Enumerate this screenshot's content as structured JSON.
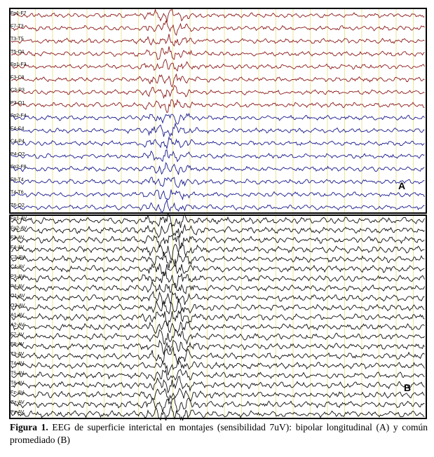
{
  "figure": {
    "panel_a": {
      "letter": "A",
      "channels": [
        "Fp1-F7",
        "F7-T3",
        "T3-T5",
        "T5-O1",
        "Fp1-F3",
        "F3-C3",
        "C3-P3",
        "P3-O1",
        "Fp2-F4",
        "F4-C4",
        "C4-P4",
        "P4-O2",
        "Fp2-F8",
        "F8-T4",
        "T4-T6",
        "T6-O2"
      ],
      "colors": [
        "#8b1a1a",
        "#8b1a1a",
        "#8b1a1a",
        "#8b1a1a",
        "#8b1a1a",
        "#8b1a1a",
        "#8b1a1a",
        "#8b1a1a",
        "#1a1a8b",
        "#1a1a8b",
        "#1a1a8b",
        "#1a1a8b",
        "#1a1a8b",
        "#1a1a8b",
        "#1a1a8b",
        "#1a1a8b"
      ]
    },
    "panel_b": {
      "letter": "B",
      "channels": [
        "Fp1-AV",
        "Fp2-AV",
        "F3-AV",
        "F4-AV",
        "C3-AV",
        "C4-AV",
        "P3-AV",
        "P4-AV",
        "O1-AV",
        "O2-AV",
        "A1-AV",
        "A2-AV",
        "F7-AV",
        "F8-AV",
        "T3-AV",
        "T4-AV",
        "T5-AV",
        "T6-AV",
        "Fz-AV",
        "Cz-AV",
        "Pz-AV"
      ],
      "color": "#111111"
    },
    "grid_color": "#e8e07a"
  },
  "caption": {
    "label": "Figura 1.",
    "text": " EEG de superficie interictal en montajes (sensibilidad 7uV): bipolar longitudinal (A) y común promediado (B)"
  }
}
